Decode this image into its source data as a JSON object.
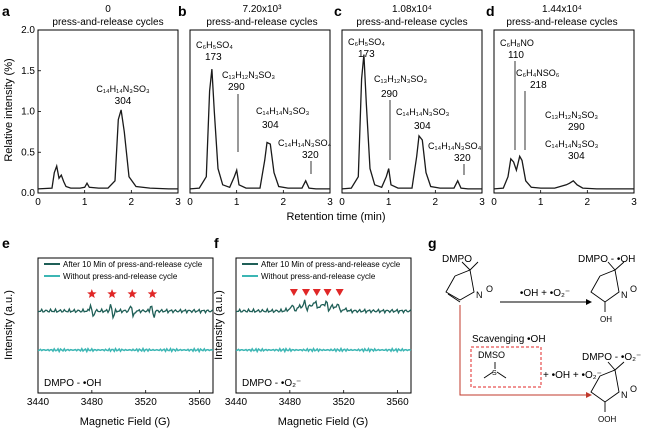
{
  "figure": {
    "colors": {
      "trace": "#1a1a1a",
      "epr_dark": "#1f5f57",
      "epr_light": "#3cb6b4",
      "star": "#e02727",
      "box": "#e02727",
      "arrow_red": "#c0392b"
    }
  },
  "chart_data": [
    {
      "id": "a",
      "type": "line",
      "panel_letter": "a",
      "title": "0",
      "subtitle": "press-and-release cycles",
      "ylabel": "Relative intensity (%)",
      "xlim": [
        0,
        3
      ],
      "ylim": [
        0,
        2
      ],
      "xticks": [
        "0",
        "1",
        "2",
        "3"
      ],
      "yticks": [
        "0.0",
        "0.5",
        "1.0",
        "1.5",
        "2.0"
      ],
      "series": [
        {
          "x": [
            0.0,
            0.3,
            0.35,
            0.4,
            0.45,
            0.5,
            0.55,
            0.6,
            0.7,
            0.9,
            1.0,
            1.05,
            1.1,
            1.3,
            1.5,
            1.65,
            1.72,
            1.78,
            1.85,
            1.95,
            2.1,
            2.4,
            2.8,
            3.0
          ],
          "y": [
            0.05,
            0.06,
            0.25,
            0.33,
            0.18,
            0.22,
            0.14,
            0.08,
            0.06,
            0.06,
            0.07,
            0.12,
            0.07,
            0.06,
            0.06,
            0.15,
            0.9,
            1.02,
            0.75,
            0.2,
            0.08,
            0.06,
            0.05,
            0.05
          ]
        }
      ],
      "annotations": [
        {
          "formula": "C₁₄H₁₄N₃SO₃",
          "mass": "304"
        }
      ]
    },
    {
      "id": "b",
      "type": "line",
      "panel_letter": "b",
      "title": "7.20x10³",
      "subtitle": "press-and-release cycles",
      "xlim": [
        0,
        3
      ],
      "ylim": [
        0,
        2
      ],
      "xticks": [
        "0",
        "1",
        "2",
        "3"
      ],
      "series": [
        {
          "x": [
            0.0,
            0.2,
            0.35,
            0.42,
            0.47,
            0.52,
            0.6,
            0.7,
            0.85,
            0.95,
            1.0,
            1.05,
            1.2,
            1.5,
            1.6,
            1.65,
            1.72,
            1.8,
            1.9,
            2.1,
            2.4,
            2.48,
            2.55,
            2.7,
            3.0
          ],
          "y": [
            0.05,
            0.06,
            0.2,
            1.25,
            1.52,
            1.0,
            0.3,
            0.1,
            0.07,
            0.2,
            0.28,
            0.1,
            0.06,
            0.06,
            0.4,
            0.62,
            0.6,
            0.25,
            0.08,
            0.06,
            0.06,
            0.15,
            0.06,
            0.05,
            0.05
          ]
        }
      ],
      "annotations": [
        {
          "formula": "C₆H₅SO₄",
          "mass": "173"
        },
        {
          "formula": "C₁₃H₁₂N₃SO₃",
          "mass": "290"
        },
        {
          "formula": "C₁₄H₁₄N₃SO₃",
          "mass": "304"
        },
        {
          "formula": "C₁₄H₁₄N₃SO₄",
          "mass": "320"
        }
      ]
    },
    {
      "id": "c",
      "type": "line",
      "panel_letter": "c",
      "title": "1.08x10⁴",
      "subtitle": "press-and-release cycles",
      "xlim": [
        0,
        3
      ],
      "ylim": [
        0,
        2
      ],
      "xticks": [
        "0",
        "1",
        "2",
        "3"
      ],
      "series": [
        {
          "x": [
            0.0,
            0.2,
            0.35,
            0.42,
            0.47,
            0.52,
            0.6,
            0.7,
            0.85,
            0.95,
            1.0,
            1.05,
            1.2,
            1.5,
            1.6,
            1.65,
            1.72,
            1.8,
            1.9,
            2.1,
            2.4,
            2.48,
            2.55,
            2.7,
            3.0
          ],
          "y": [
            0.05,
            0.06,
            0.2,
            1.4,
            1.7,
            1.1,
            0.3,
            0.1,
            0.07,
            0.2,
            0.3,
            0.1,
            0.06,
            0.06,
            0.45,
            0.7,
            0.65,
            0.25,
            0.08,
            0.06,
            0.06,
            0.15,
            0.06,
            0.05,
            0.05
          ]
        }
      ],
      "annotations": [
        {
          "formula": "C₆H₅SO₄",
          "mass": "173"
        },
        {
          "formula": "C₁₃H₁₂N₃SO₃",
          "mass": "290"
        },
        {
          "formula": "C₁₄H₁₄N₃SO₃",
          "mass": "304"
        },
        {
          "formula": "C₁₄H₁₄N₃SO₄",
          "mass": "320"
        }
      ]
    },
    {
      "id": "d",
      "type": "line",
      "panel_letter": "d",
      "title": "1.44x10⁴",
      "subtitle": "press-and-release cycles",
      "xlim": [
        0,
        3
      ],
      "ylim": [
        0,
        2
      ],
      "xticks": [
        "0",
        "1",
        "2",
        "3"
      ],
      "series": [
        {
          "x": [
            0.0,
            0.2,
            0.3,
            0.36,
            0.42,
            0.48,
            0.55,
            0.6,
            0.68,
            0.8,
            1.0,
            1.3,
            1.55,
            1.62,
            1.7,
            1.78,
            1.9,
            2.2,
            2.6,
            3.0
          ],
          "y": [
            0.05,
            0.06,
            0.2,
            0.42,
            0.38,
            0.28,
            0.45,
            0.4,
            0.15,
            0.07,
            0.06,
            0.06,
            0.1,
            0.12,
            0.15,
            0.1,
            0.06,
            0.05,
            0.05,
            0.05
          ]
        }
      ],
      "annotations": [
        {
          "formula": "C₆H₈NO",
          "mass": "110"
        },
        {
          "formula": "C₆H₄NSO₆",
          "mass": "218"
        },
        {
          "formula": "C₁₃H₁₂N₃SO₃",
          "mass": "290"
        },
        {
          "formula": "C₁₄H₁₄N₃SO₃",
          "mass": "304"
        }
      ]
    },
    {
      "id": "e",
      "type": "line",
      "panel_letter": "e",
      "xlabel": "Magnetic Field (G)",
      "ylabel": "Intensity (a.u.)",
      "xlim": [
        3440,
        3570
      ],
      "xticks": [
        "3440",
        "3480",
        "3520",
        "3560"
      ],
      "legend": [
        "After 10 Min of press-and-release cycle",
        "Without press-and-release cycle"
      ],
      "legend_position": "top-left",
      "label": "DMPO - •OH",
      "peaks": [
        3480,
        3495,
        3510,
        3525
      ]
    },
    {
      "id": "f",
      "type": "line",
      "panel_letter": "f",
      "xlabel": "Magnetic Field (G)",
      "ylabel": "Intensity (a.u.)",
      "xlim": [
        3440,
        3570
      ],
      "xticks": [
        "3440",
        "3480",
        "3520",
        "3560"
      ],
      "legend": [
        "After 10 Min of press-and-release cycle",
        "Without press-and-release cycle"
      ],
      "legend_position": "top-left",
      "label": "DMPO - •O₂⁻",
      "peaks": [
        3483,
        3492,
        3500,
        3508,
        3517
      ]
    }
  ],
  "shared_xlabel": "Retention time (min)",
  "scheme": {
    "panel_letter": "g",
    "reactant": "DMPO",
    "product1": "DMPO - •OH",
    "product2": "DMPO - •O₂⁻",
    "reagents": "•OH + •O₂⁻",
    "scavenging": "Scavenging •OH",
    "dmso": "DMSO",
    "reagents2": "+ •OH + •O₂⁻",
    "atoms": {
      "n": "N",
      "o": "O",
      "oh": "OH",
      "ooh": "OOH",
      "plus": "+",
      "s": "S"
    }
  }
}
